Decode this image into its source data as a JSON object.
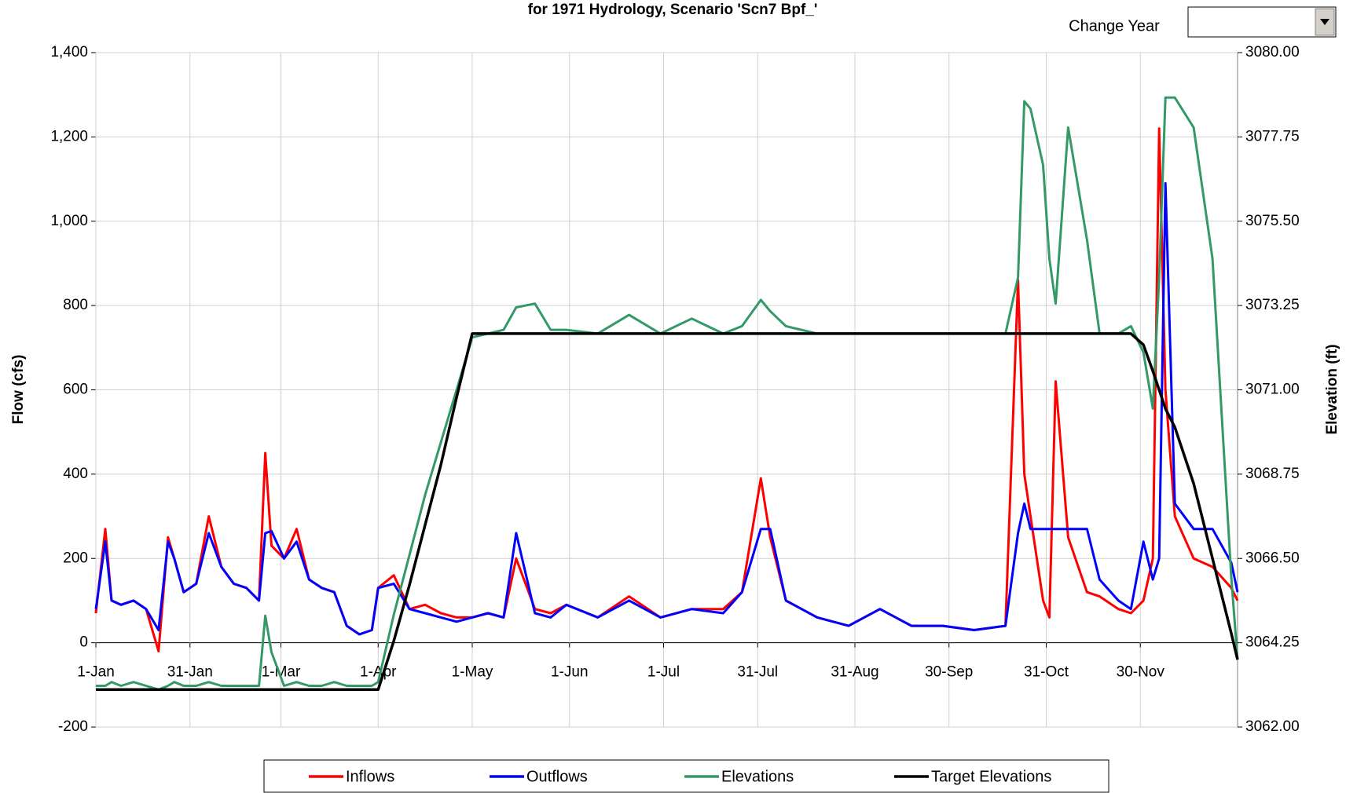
{
  "controls": {
    "change_year_label": "Change Year"
  },
  "chart_data": {
    "type": "line",
    "title": "for 1971 Hydrology, Scenario 'Scn7 Bpf_'",
    "ylabel": "Flow (cfs)",
    "y2label": "Elevation (ft)",
    "x": [
      0,
      3,
      5,
      8,
      12,
      16,
      20,
      23,
      25,
      28,
      32,
      36,
      40,
      44,
      48,
      52,
      54,
      56,
      60,
      64,
      68,
      72,
      76,
      80,
      84,
      88,
      90,
      95,
      100,
      105,
      110,
      115,
      120,
      125,
      130,
      134,
      140,
      145,
      150,
      160,
      170,
      180,
      190,
      200,
      206,
      212,
      215,
      220,
      230,
      240,
      250,
      260,
      270,
      280,
      290,
      294,
      296,
      298,
      302,
      304,
      306,
      310,
      316,
      320,
      326,
      330,
      334,
      337,
      339,
      341,
      344,
      350,
      356,
      362,
      364
    ],
    "xlim": [
      0,
      364
    ],
    "xticks": [
      {
        "value": 0,
        "label": "1-Jan"
      },
      {
        "value": 30,
        "label": "31-Jan"
      },
      {
        "value": 59,
        "label": "1-Mar"
      },
      {
        "value": 90,
        "label": "1-Apr"
      },
      {
        "value": 120,
        "label": "1-May"
      },
      {
        "value": 151,
        "label": "1-Jun"
      },
      {
        "value": 181,
        "label": "1-Jul"
      },
      {
        "value": 211,
        "label": "31-Jul"
      },
      {
        "value": 242,
        "label": "31-Aug"
      },
      {
        "value": 272,
        "label": "30-Sep"
      },
      {
        "value": 303,
        "label": "31-Oct"
      },
      {
        "value": 333,
        "label": "30-Nov"
      }
    ],
    "ylim": [
      -200,
      1400
    ],
    "yticks": [
      -200,
      0,
      200,
      400,
      600,
      800,
      {
        "value": 1000,
        "label": "1,000"
      },
      {
        "value": 1200,
        "label": "1,200"
      },
      {
        "value": 1400,
        "label": "1,400"
      }
    ],
    "y2lim": [
      3062,
      3080
    ],
    "y2ticks": [
      {
        "value": 3062,
        "label": "3062.00"
      },
      {
        "value": 3064.25,
        "label": "3064.25"
      },
      {
        "value": 3066.5,
        "label": "3066.50"
      },
      {
        "value": 3068.75,
        "label": "3068.75"
      },
      {
        "value": 3071,
        "label": "3071.00"
      },
      {
        "value": 3073.25,
        "label": "3073.25"
      },
      {
        "value": 3075.5,
        "label": "3075.50"
      },
      {
        "value": 3077.75,
        "label": "3077.75"
      },
      {
        "value": 3080,
        "label": "3080.00"
      }
    ],
    "grid": true,
    "legend": "bottom",
    "series": [
      {
        "name": "Inflows",
        "color": "#ff0000",
        "axis": "y",
        "values": [
          70,
          270,
          100,
          90,
          100,
          80,
          -20,
          250,
          200,
          120,
          140,
          300,
          180,
          140,
          130,
          100,
          450,
          230,
          200,
          270,
          150,
          130,
          120,
          40,
          20,
          30,
          130,
          160,
          80,
          90,
          70,
          60,
          60,
          70,
          60,
          200,
          80,
          70,
          90,
          60,
          110,
          60,
          80,
          80,
          120,
          390,
          250,
          100,
          60,
          40,
          80,
          40,
          40,
          30,
          40,
          860,
          400,
          300,
          100,
          60,
          620,
          250,
          120,
          110,
          80,
          70,
          100,
          200,
          1220,
          600,
          300,
          200,
          180,
          130,
          100
        ]
      },
      {
        "name": "Outflows",
        "color": "#0000ff",
        "axis": "y",
        "values": [
          80,
          240,
          100,
          90,
          100,
          80,
          30,
          240,
          200,
          120,
          140,
          260,
          180,
          140,
          130,
          100,
          260,
          265,
          200,
          240,
          150,
          130,
          120,
          40,
          20,
          30,
          130,
          140,
          80,
          70,
          60,
          50,
          60,
          70,
          60,
          260,
          70,
          60,
          90,
          60,
          100,
          60,
          80,
          70,
          120,
          270,
          270,
          100,
          60,
          40,
          80,
          40,
          40,
          30,
          40,
          260,
          330,
          270,
          270,
          270,
          270,
          270,
          270,
          150,
          100,
          80,
          240,
          150,
          200,
          1090,
          330,
          270,
          270,
          190,
          120
        ]
      },
      {
        "name": "Elevations",
        "color": "#339966",
        "axis": "y2",
        "values": [
          3063.1,
          3063.1,
          3063.2,
          3063.1,
          3063.2,
          3063.1,
          3063.0,
          3063.1,
          3063.2,
          3063.1,
          3063.1,
          3063.2,
          3063.1,
          3063.1,
          3063.1,
          3063.1,
          3064.97,
          3064.0,
          3063.1,
          3063.2,
          3063.1,
          3063.1,
          3063.2,
          3063.1,
          3063.1,
          3063.1,
          3063.2,
          3065.0,
          3066.6,
          3068.2,
          3069.6,
          3071.0,
          3072.4,
          3072.5,
          3072.6,
          3073.2,
          3073.3,
          3072.6,
          3072.6,
          3072.5,
          3073.0,
          3072.5,
          3072.9,
          3072.5,
          3072.7,
          3073.4,
          3073.1,
          3072.7,
          3072.5,
          3072.5,
          3072.5,
          3072.5,
          3072.5,
          3072.5,
          3072.5,
          3074.0,
          3078.7,
          3078.5,
          3077.0,
          3074.5,
          3073.3,
          3078.0,
          3075.0,
          3072.5,
          3072.5,
          3072.7,
          3072.0,
          3070.5,
          3074.0,
          3078.8,
          3078.8,
          3078.0,
          3074.5,
          3066.0,
          3063.8
        ]
      },
      {
        "name": "Target Elevations",
        "color": "#000000",
        "axis": "y2",
        "values": [
          3063.0,
          3063.0,
          3063.0,
          3063.0,
          3063.0,
          3063.0,
          3063.0,
          3063.0,
          3063.0,
          3063.0,
          3063.0,
          3063.0,
          3063.0,
          3063.0,
          3063.0,
          3063.0,
          3063.0,
          3063.0,
          3063.0,
          3063.0,
          3063.0,
          3063.0,
          3063.0,
          3063.0,
          3063.0,
          3063.0,
          3063.0,
          3064.3,
          3065.8,
          3067.4,
          3069.0,
          3070.8,
          3072.5,
          3072.5,
          3072.5,
          3072.5,
          3072.5,
          3072.5,
          3072.5,
          3072.5,
          3072.5,
          3072.5,
          3072.5,
          3072.5,
          3072.5,
          3072.5,
          3072.5,
          3072.5,
          3072.5,
          3072.5,
          3072.5,
          3072.5,
          3072.5,
          3072.5,
          3072.5,
          3072.5,
          3072.5,
          3072.5,
          3072.5,
          3072.5,
          3072.5,
          3072.5,
          3072.5,
          3072.5,
          3072.5,
          3072.5,
          3072.2,
          3071.5,
          3071.0,
          3070.5,
          3070.0,
          3068.5,
          3066.5,
          3064.5,
          3063.8
        ]
      }
    ]
  }
}
